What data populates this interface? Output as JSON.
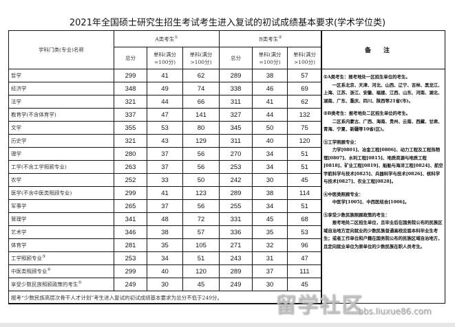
{
  "title": "2021年全国硕士研究生招生考试考生进入复试的初试成绩基本要求(学术学位类)",
  "header": {
    "subject": "学科门类(专业)名称",
    "group_a": "A类考生",
    "group_a_mark": "①",
    "group_b": "B类考生",
    "group_b_mark": "②",
    "total": "总分",
    "single_100": "单科(满分=100分)",
    "single_gt100": "单科(满分>100分)",
    "notes": "备注"
  },
  "rows": [
    {
      "name": "哲学",
      "mark": "",
      "a": [
        "299",
        "41",
        "62"
      ],
      "b": [
        "289",
        "38",
        "57"
      ]
    },
    {
      "name": "经济学",
      "mark": "",
      "a": [
        "348",
        "49",
        "74"
      ],
      "b": [
        "338",
        "46",
        "69"
      ]
    },
    {
      "name": "法学",
      "mark": "",
      "a": [
        "321",
        "44",
        "66"
      ],
      "b": [
        "311",
        "41",
        "62"
      ]
    },
    {
      "name": "教育学(不含体育学)",
      "mark": "",
      "a": [
        "337",
        "47",
        "141"
      ],
      "b": [
        "327",
        "44",
        "132"
      ]
    },
    {
      "name": "文学",
      "mark": "",
      "a": [
        "355",
        "53",
        "80"
      ],
      "b": [
        "345",
        "50",
        "75"
      ]
    },
    {
      "name": "历史学",
      "mark": "",
      "a": [
        "321",
        "43",
        "129"
      ],
      "b": [
        "311",
        "40",
        "120"
      ]
    },
    {
      "name": "理学",
      "mark": "",
      "a": [
        "280",
        "37",
        "56"
      ],
      "b": [
        "270",
        "34",
        "51"
      ]
    },
    {
      "name": "工学(不含工学照顾专业)",
      "mark": "",
      "a": [
        "263",
        "37",
        "56"
      ],
      "b": [
        "253",
        "34",
        "51"
      ]
    },
    {
      "name": "农学",
      "mark": "",
      "a": [
        "252",
        "33",
        "50"
      ],
      "b": [
        "242",
        "30",
        "45"
      ]
    },
    {
      "name": "医学(不含中医类照顾专业)",
      "mark": "",
      "a": [
        "299",
        "41",
        "123"
      ],
      "b": [
        "289",
        "38",
        "114"
      ]
    },
    {
      "name": "军事学",
      "mark": "",
      "a": [
        "265",
        "37",
        "56"
      ],
      "b": [
        "255",
        "34",
        "51"
      ]
    },
    {
      "name": "管理学",
      "mark": "",
      "a": [
        "341",
        "48",
        "72"
      ],
      "b": [
        "331",
        "45",
        "68"
      ]
    },
    {
      "name": "艺术学",
      "mark": "",
      "a": [
        "346",
        "38",
        "57"
      ],
      "b": [
        "336",
        "35",
        "53"
      ]
    },
    {
      "name": "体育学",
      "mark": "",
      "a": [
        "281",
        "35",
        "105"
      ],
      "b": [
        "271",
        "32",
        "96"
      ]
    },
    {
      "name": "工学照顾专业",
      "mark": "③",
      "a": [
        "253",
        "34",
        "51"
      ],
      "b": [
        "243",
        "31",
        "47"
      ]
    },
    {
      "name": "中医类照顾专业",
      "mark": "④",
      "a": [
        "299",
        "40",
        "120"
      ],
      "b": [
        "289",
        "37",
        "111"
      ]
    },
    {
      "name": "享受少数民族照顾政策的考生",
      "mark": "⑤",
      "a": [
        "249",
        "30",
        "45"
      ],
      "b": [
        "249",
        "30",
        "45"
      ]
    }
  ],
  "footnote": "报考“少数民族高层次骨干人才计划”考生进入复试的初试成绩基本要求为总分不低于249分。",
  "notes": [
    {
      "head": "①A类考生：报考地处一区招生单位的考生。",
      "body": "一区系北京、天津、河北、山西、辽宁、吉林、黑龙江、上海、江苏、浙江、安徽、福建、江西、山东、河南、湖北、湖南、广东、重庆、四川、陕西等21省(市)。"
    },
    {
      "head": "②B类考生：报考地处二区招生单位的考生。",
      "body": "二区系内蒙古、广西、海南、贵州、云南、西藏、甘肃、青海、宁夏、新疆等10省(区)。"
    },
    {
      "head": "③工学照顾专业：",
      "body": "力学[0801]、冶金工程[0806]、动力工程及工程热物理[0807]、水利工程[0815]、地质资源与地质工程[0818]、矿业工程[0819]、船舶与海洋工程[0824]、航空宇航科学与技术[0825]、兵器科学与技术[0826]、核科学与技术[0827]、农业工程[0828]。"
    },
    {
      "head": "④中医类照顾专业：",
      "body": "中医学[1005]、中西医结合[1006]。"
    },
    {
      "head": "⑤享受少数民族照顾政策的考生：",
      "body": "报考地处二区招生单位，且毕业后在国务院公布的民族区域自治地方定向就业的少数民族普通高校应届本科毕业生考生；或者工作单位和户籍在国务院公布的民族区域自治地方，且定向就业单位为原单位的少数民族在职人员考生。"
    }
  ],
  "watermark": {
    "logo": "留学社区",
    "url": "bbs.liuxue86.com"
  }
}
